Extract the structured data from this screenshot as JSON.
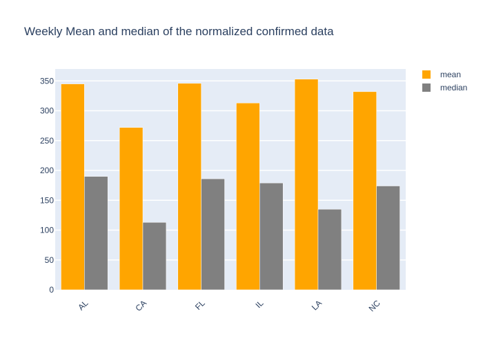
{
  "chart_data": {
    "type": "bar",
    "title": "Weekly Mean and median of the normalized confirmed data",
    "xlabel": "",
    "ylabel": "",
    "categories": [
      "AL",
      "CA",
      "FL",
      "IL",
      "LA",
      "NC"
    ],
    "series": [
      {
        "name": "mean",
        "color": "#FFA500",
        "values": [
          345,
          272,
          346,
          313,
          353,
          332
        ]
      },
      {
        "name": "median",
        "color": "#808080",
        "values": [
          190,
          113,
          186,
          179,
          135,
          174
        ]
      }
    ],
    "ylim": [
      0,
      370
    ],
    "yticks": [
      0,
      50,
      100,
      150,
      200,
      250,
      300,
      350
    ],
    "grid": true,
    "legend_position": "top-right",
    "plot_background": "#E5ECF6",
    "text_color": "#2A3F5F"
  }
}
